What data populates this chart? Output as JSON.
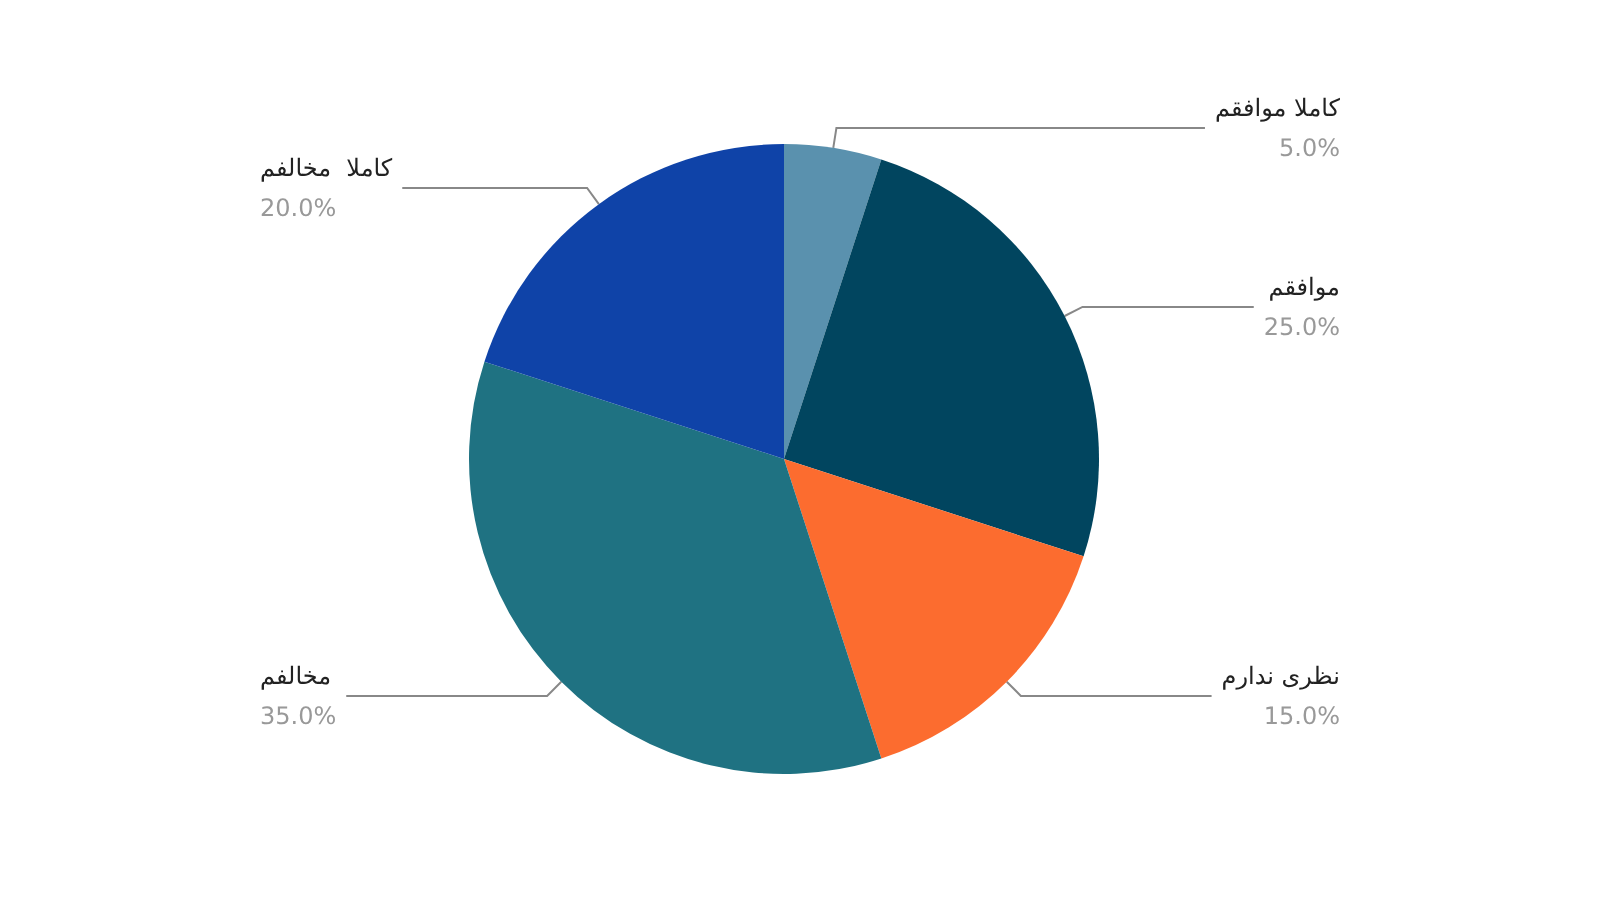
{
  "chart_data": {
    "type": "pie",
    "categories": [
      "کاملا موافقم",
      "موافقم",
      "نظری ندارم",
      "مخالفم",
      "کاملا  مخالفم"
    ],
    "values": [
      5,
      25,
      15,
      35,
      20
    ],
    "value_labels": [
      "5.0%",
      "25.0%",
      "15.0%",
      "35.0%",
      "20.0%"
    ],
    "colors": [
      "#5a91ae",
      "#01455f",
      "#fc6c2f",
      "#1f7282",
      "#0f43a8"
    ],
    "legend": false
  }
}
